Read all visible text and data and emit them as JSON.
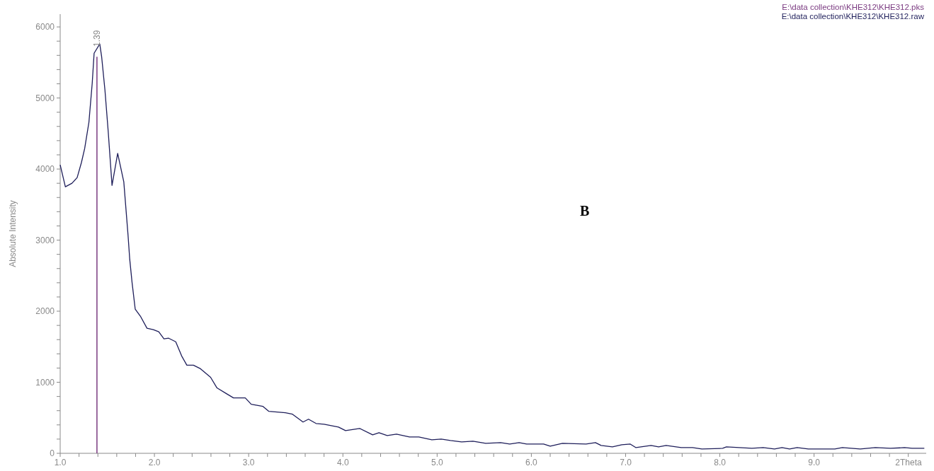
{
  "chart_data": {
    "type": "line",
    "ylabel": "Absolute Intensity",
    "xlabel": "2Theta",
    "annotations": [
      "B",
      {
        "text": "1.39",
        "x": 1.39,
        "y": 5580
      }
    ],
    "legend": "top right",
    "xlim": [
      1.0,
      10.19
    ],
    "ylim": [
      0,
      6180
    ],
    "xticks": [
      {
        "value": 1,
        "label": "1.0"
      },
      {
        "value": 1.2,
        "label": null
      },
      {
        "value": 1.4,
        "label": null
      },
      {
        "value": 1.6,
        "label": null
      },
      {
        "value": 1.8,
        "label": null
      },
      {
        "value": 2,
        "label": "2.0"
      },
      {
        "value": 2.2,
        "label": null
      },
      {
        "value": 2.4,
        "label": null
      },
      {
        "value": 2.6,
        "label": null
      },
      {
        "value": 2.8,
        "label": null
      },
      {
        "value": 3,
        "label": "3.0"
      },
      {
        "value": 3.2,
        "label": null
      },
      {
        "value": 3.4,
        "label": null
      },
      {
        "value": 3.6,
        "label": null
      },
      {
        "value": 3.8,
        "label": null
      },
      {
        "value": 4,
        "label": "4.0"
      },
      {
        "value": 4.2,
        "label": null
      },
      {
        "value": 4.4,
        "label": null
      },
      {
        "value": 4.6,
        "label": null
      },
      {
        "value": 4.8,
        "label": null
      },
      {
        "value": 5,
        "label": "5.0"
      },
      {
        "value": 5.2,
        "label": null
      },
      {
        "value": 5.4,
        "label": null
      },
      {
        "value": 5.6,
        "label": null
      },
      {
        "value": 5.8,
        "label": null
      },
      {
        "value": 6,
        "label": "6.0"
      },
      {
        "value": 6.2,
        "label": null
      },
      {
        "value": 6.4,
        "label": null
      },
      {
        "value": 6.6,
        "label": null
      },
      {
        "value": 6.8,
        "label": null
      },
      {
        "value": 7,
        "label": "7.0"
      },
      {
        "value": 7.2,
        "label": null
      },
      {
        "value": 7.4,
        "label": null
      },
      {
        "value": 7.6,
        "label": null
      },
      {
        "value": 7.8,
        "label": null
      },
      {
        "value": 8,
        "label": "8.0"
      },
      {
        "value": 8.2,
        "label": null
      },
      {
        "value": 8.4,
        "label": null
      },
      {
        "value": 8.6,
        "label": null
      },
      {
        "value": 8.8,
        "label": null
      },
      {
        "value": 9,
        "label": "9.0"
      },
      {
        "value": 9.2,
        "label": null
      },
      {
        "value": 9.4,
        "label": null
      },
      {
        "value": 9.6,
        "label": null
      },
      {
        "value": 9.8,
        "label": null
      },
      {
        "value": 10,
        "label": null
      }
    ],
    "yticks": [
      0,
      {
        "value": 200,
        "label": null
      },
      {
        "value": 400,
        "label": null
      },
      {
        "value": 600,
        "label": null
      },
      {
        "value": 800,
        "label": null
      },
      1000,
      {
        "value": 1200,
        "label": null
      },
      {
        "value": 1400,
        "label": null
      },
      {
        "value": 1600,
        "label": null
      },
      {
        "value": 1800,
        "label": null
      },
      2000,
      {
        "value": 2200,
        "label": null
      },
      {
        "value": 2400,
        "label": null
      },
      {
        "value": 2600,
        "label": null
      },
      {
        "value": 2800,
        "label": null
      },
      3000,
      {
        "value": 3200,
        "label": null
      },
      {
        "value": 3400,
        "label": null
      },
      {
        "value": 3600,
        "label": null
      },
      {
        "value": 3800,
        "label": null
      },
      4000,
      {
        "value": 4200,
        "label": null
      },
      {
        "value": 4400,
        "label": null
      },
      {
        "value": 4600,
        "label": null
      },
      {
        "value": 4800,
        "label": null
      },
      5000,
      {
        "value": 5200,
        "label": null
      },
      {
        "value": 5400,
        "label": null
      },
      {
        "value": 5600,
        "label": null
      },
      {
        "value": 5800,
        "label": null
      },
      6000
    ],
    "series": [
      {
        "name": "E:\\data collection\\KHE312\\KHE312.pks",
        "type": "bar",
        "color": "#7a3a80",
        "x": [
          1.39
        ],
        "values": [
          5580
        ]
      },
      {
        "name": "E:\\data collection\\KHE312\\KHE312.raw",
        "color": "#1e1e5a",
        "x": [
          1.0,
          1.055,
          1.125,
          1.18,
          1.225,
          1.26,
          1.305,
          1.34,
          1.36,
          1.42,
          1.44,
          1.475,
          1.51,
          1.55,
          1.61,
          1.675,
          1.72,
          1.738,
          1.763,
          1.796,
          1.851,
          1.921,
          1.988,
          2.046,
          2.101,
          2.151,
          2.226,
          2.289,
          2.344,
          2.414,
          2.489,
          2.596,
          2.664,
          2.764,
          2.839,
          2.964,
          3.027,
          3.152,
          3.215,
          3.39,
          3.465,
          3.577,
          3.635,
          3.715,
          3.8,
          3.953,
          4.028,
          4.178,
          4.316,
          4.383,
          4.47,
          4.569,
          4.707,
          4.806,
          4.944,
          5.043,
          5.142,
          5.26,
          5.38,
          5.516,
          5.674,
          5.77,
          5.87,
          5.95,
          6.13,
          6.2,
          6.33,
          6.58,
          6.68,
          6.74,
          6.86,
          6.96,
          7.05,
          7.11,
          7.27,
          7.35,
          7.43,
          7.59,
          7.71,
          7.81,
          8.03,
          8.07,
          8.34,
          8.46,
          8.58,
          8.66,
          8.74,
          8.82,
          8.94,
          9.22,
          9.3,
          9.49,
          9.65,
          9.81,
          9.96,
          10.04,
          10.17
        ],
        "values": [
          4060,
          3750,
          3800,
          3880,
          4090,
          4290,
          4660,
          5210,
          5630,
          5760,
          5580,
          5110,
          4520,
          3770,
          4220,
          3820,
          3070,
          2730,
          2400,
          2030,
          1930,
          1760,
          1740,
          1710,
          1610,
          1620,
          1570,
          1370,
          1240,
          1240,
          1190,
          1070,
          920,
          840,
          780,
          780,
          690,
          660,
          590,
          570,
          550,
          440,
          480,
          420,
          410,
          370,
          320,
          350,
          260,
          290,
          250,
          270,
          230,
          230,
          190,
          200,
          180,
          160,
          170,
          140,
          150,
          130,
          150,
          130,
          130,
          100,
          140,
          130,
          150,
          110,
          90,
          120,
          130,
          80,
          110,
          90,
          110,
          80,
          80,
          60,
          70,
          90,
          70,
          80,
          60,
          80,
          60,
          80,
          60,
          60,
          80,
          60,
          80,
          70,
          80,
          70,
          70
        ]
      }
    ]
  }
}
